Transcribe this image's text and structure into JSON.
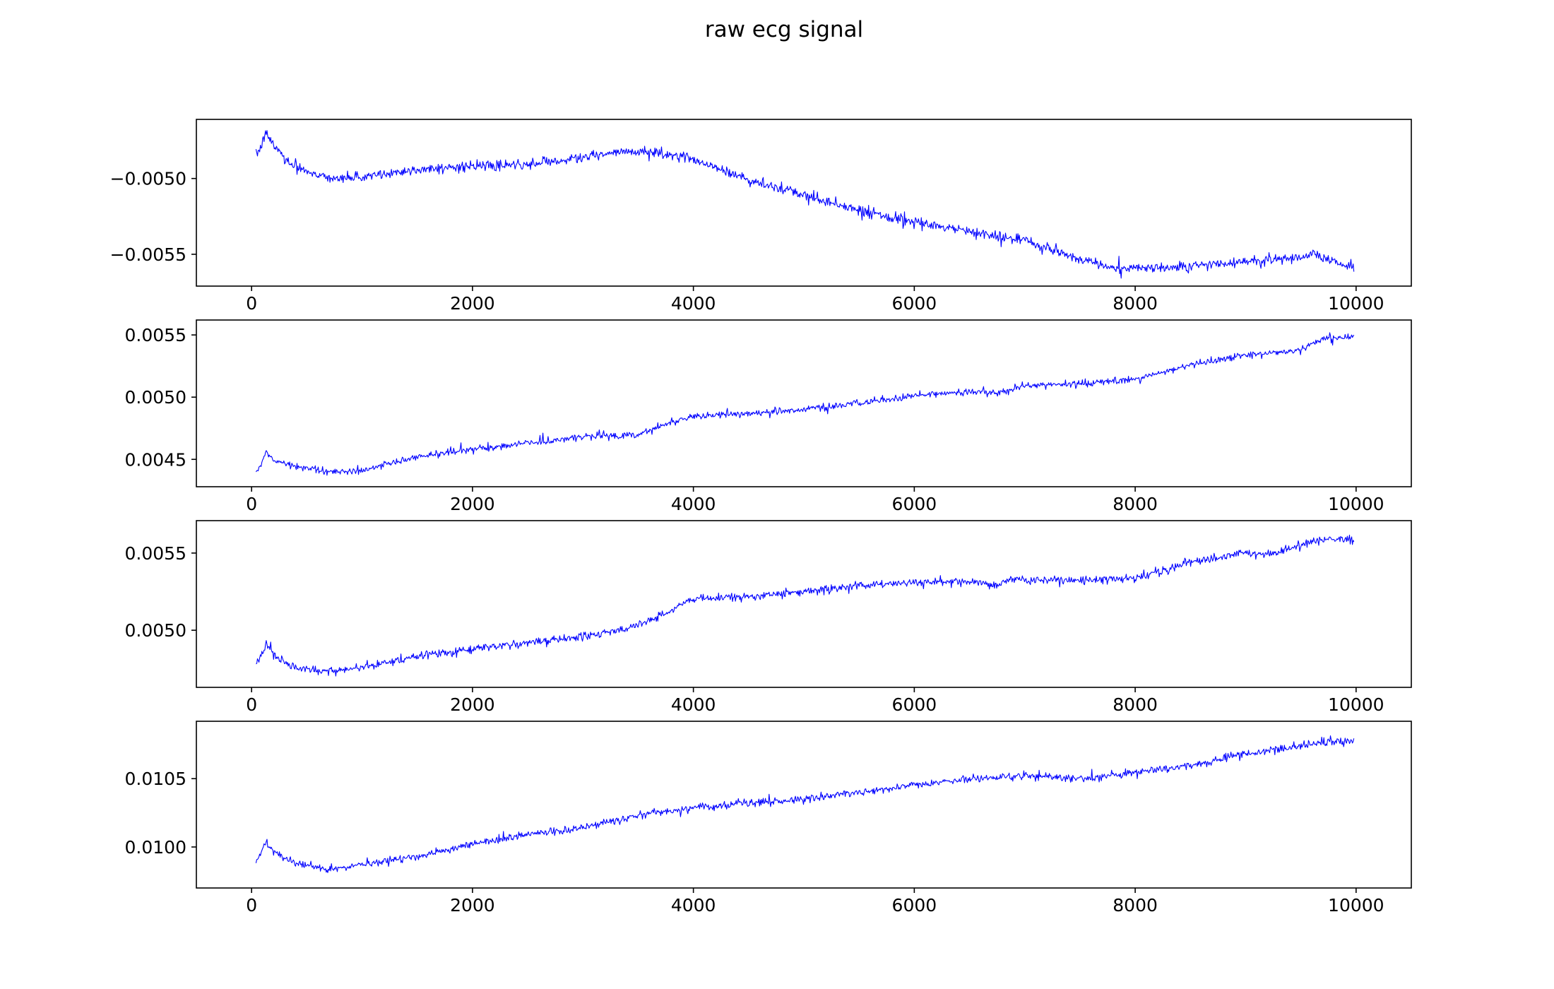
{
  "chart_data": {
    "title": "raw ecg signal",
    "type": "line",
    "line_color": "#0000ff",
    "panels": [
      {
        "xlim": [
          -500,
          10500
        ],
        "ylim": [
          -0.00571,
          -0.00461
        ],
        "xticks": [
          0,
          2000,
          4000,
          6000,
          8000,
          10000
        ],
        "xtick_labels": [
          "0",
          "2000",
          "4000",
          "6000",
          "8000",
          "10000"
        ],
        "yticks": [
          -0.005,
          -0.0055
        ],
        "ytick_labels": [
          "−0.0050",
          "−0.0055"
        ],
        "noise": 3.5e-05,
        "series": [
          {
            "x": [
              40,
              80,
              130,
              200,
              350,
              600,
              800,
              1000,
              1500,
              2000,
              2500,
              3000,
              3300,
              3600,
              4000,
              4500,
              5000,
              5500,
              6000,
              6500,
              7000,
              7500,
              7800,
              8200,
              8600,
              9000,
              9500,
              9620,
              9980
            ],
            "y": [
              -0.00485,
              -0.0048,
              -0.0047,
              -0.00478,
              -0.0049,
              -0.00498,
              -0.005,
              -0.00499,
              -0.00494,
              -0.00492,
              -0.00491,
              -0.00486,
              -0.00483,
              -0.00482,
              -0.00487,
              -0.00501,
              -0.00511,
              -0.00521,
              -0.00529,
              -0.00535,
              -0.00541,
              -0.00553,
              -0.00559,
              -0.00559,
              -0.00557,
              -0.00555,
              -0.00552,
              -0.00549,
              -0.0056
            ]
          }
        ]
      },
      {
        "xlim": [
          -500,
          10500
        ],
        "ylim": [
          0.00428,
          0.00562
        ],
        "xticks": [
          0,
          2000,
          4000,
          6000,
          8000,
          10000
        ],
        "xtick_labels": [
          "0",
          "2000",
          "4000",
          "6000",
          "8000",
          "10000"
        ],
        "yticks": [
          0.0045,
          0.005,
          0.0055
        ],
        "ytick_labels": [
          "0.0045",
          "0.0050",
          "0.0055"
        ],
        "noise": 3e-05,
        "series": [
          {
            "x": [
              40,
              80,
              130,
              200,
              400,
              700,
              1000,
              1500,
              2000,
              2500,
              3000,
              3500,
              3800,
              4000,
              4500,
              5000,
              5500,
              6000,
              6500,
              6750,
              7000,
              7500,
              8000,
              8500,
              9000,
              9500,
              9700,
              9980
            ],
            "y": [
              0.0044,
              0.00445,
              0.00456,
              0.0045,
              0.00444,
              0.0044,
              0.00441,
              0.00452,
              0.00458,
              0.00463,
              0.00468,
              0.0047,
              0.0048,
              0.00485,
              0.00487,
              0.0049,
              0.00495,
              0.00501,
              0.00505,
              0.00503,
              0.00509,
              0.00511,
              0.00514,
              0.00526,
              0.00534,
              0.00538,
              0.00547,
              0.00549
            ]
          }
        ]
      },
      {
        "xlim": [
          -500,
          10500
        ],
        "ylim": [
          0.00463,
          0.00571
        ],
        "xticks": [
          0,
          2000,
          4000,
          6000,
          8000,
          10000
        ],
        "xtick_labels": [
          "0",
          "2000",
          "4000",
          "6000",
          "8000",
          "10000"
        ],
        "yticks": [
          0.005,
          0.0055
        ],
        "ytick_labels": [
          "0.0050",
          "0.0055"
        ],
        "noise": 2.8e-05,
        "series": [
          {
            "x": [
              40,
              80,
              130,
              200,
              400,
              700,
              1000,
              1500,
              2000,
              2500,
              3000,
              3400,
              3700,
              3900,
              4000,
              4500,
              5000,
              5500,
              6000,
              6500,
              6750,
              6850,
              7500,
              8000,
              8500,
              9000,
              9300,
              9600,
              9980
            ],
            "y": [
              0.00478,
              0.00483,
              0.00492,
              0.00483,
              0.00476,
              0.00473,
              0.00476,
              0.00483,
              0.00488,
              0.00492,
              0.00496,
              0.00501,
              0.00509,
              0.00518,
              0.0052,
              0.00522,
              0.00525,
              0.00529,
              0.00531,
              0.00531,
              0.00529,
              0.00533,
              0.00532,
              0.00534,
              0.00544,
              0.0055,
              0.0055,
              0.00558,
              0.00559
            ]
          }
        ]
      },
      {
        "xlim": [
          -500,
          10500
        ],
        "ylim": [
          0.0097,
          0.01092
        ],
        "xticks": [
          0,
          2000,
          4000,
          6000,
          8000,
          10000
        ],
        "xtick_labels": [
          "0",
          "2000",
          "4000",
          "6000",
          "8000",
          "10000"
        ],
        "yticks": [
          0.01,
          0.0105
        ],
        "ytick_labels": [
          "0.0100",
          "0.0105"
        ],
        "noise": 3e-05,
        "series": [
          {
            "x": [
              40,
              80,
              130,
              200,
              400,
              700,
              1000,
              1500,
              2000,
              2500,
              3000,
              3500,
              4000,
              4500,
              5000,
              5500,
              6000,
              6500,
              7000,
              7500,
              8000,
              8500,
              9000,
              9500,
              9700,
              9980
            ],
            "y": [
              0.0099,
              0.00995,
              0.01004,
              0.00996,
              0.00988,
              0.00984,
              0.00987,
              0.00993,
              0.01002,
              0.01009,
              0.01014,
              0.01023,
              0.01029,
              0.01032,
              0.01035,
              0.0104,
              0.01045,
              0.0105,
              0.01052,
              0.0105,
              0.01055,
              0.0106,
              0.01068,
              0.01074,
              0.01077,
              0.01077
            ]
          }
        ]
      }
    ]
  }
}
